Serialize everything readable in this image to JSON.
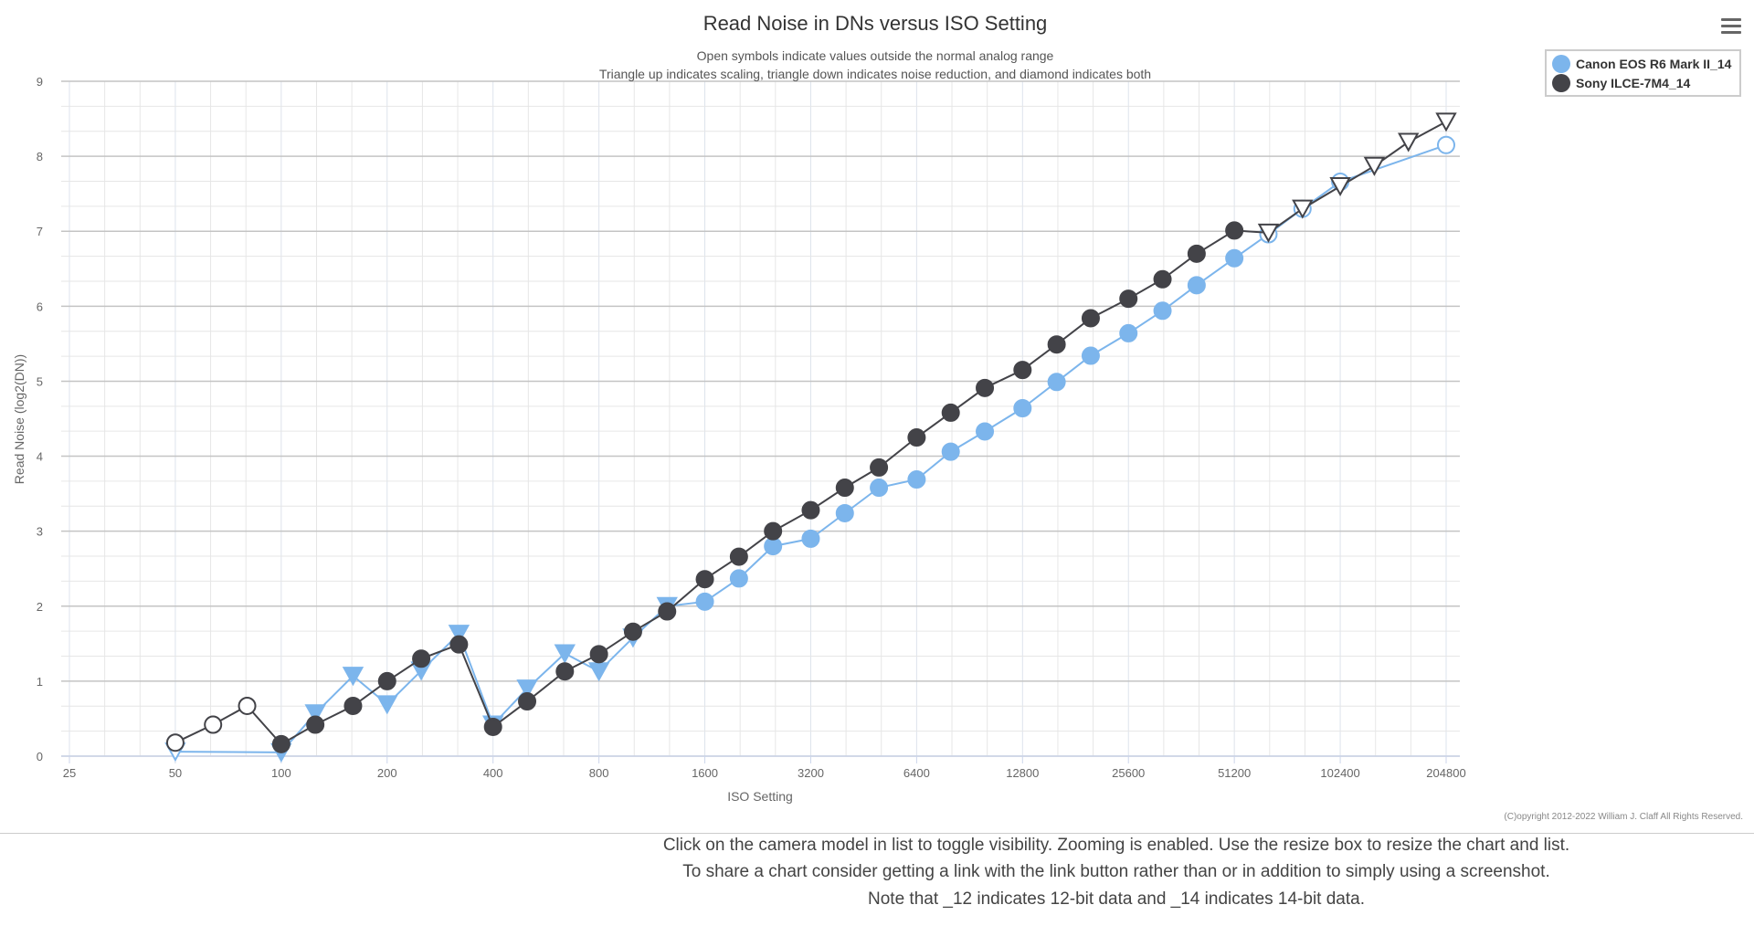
{
  "menu_icon": "hamburger-menu-icon",
  "chart_data": {
    "type": "line",
    "title": "Read Noise in DNs versus ISO Setting",
    "subtitle": [
      "Open symbols indicate values outside the normal analog range",
      "Triangle up indicates scaling, triangle down indicates noise reduction, and diamond indicates both"
    ],
    "xlabel": "ISO Setting",
    "ylabel": "Read Noise (log2(DN))",
    "x_scale": "log2",
    "xlim": [
      25,
      204800
    ],
    "ylim": [
      0,
      9
    ],
    "x_ticks": [
      "25",
      "50",
      "100",
      "200",
      "400",
      "800",
      "1600",
      "3200",
      "6400",
      "12800",
      "25600",
      "51200",
      "102400",
      "204800"
    ],
    "y_ticks": [
      "0",
      "1",
      "2",
      "3",
      "4",
      "5",
      "6",
      "7",
      "8",
      "9"
    ],
    "grid": true,
    "legend_position": "top-right",
    "copyright": "(C)opyright 2012-2022 William J. Claff All Rights Reserved.",
    "series": [
      {
        "name": "Canon EOS R6 Mark II_14",
        "color": "#7cb5ec",
        "points": [
          {
            "x": 50,
            "y": 0.06,
            "m": "tri-down-open"
          },
          {
            "x": 100,
            "y": 0.05,
            "m": "tri-down"
          },
          {
            "x": 125,
            "y": 0.57,
            "m": "tri-down"
          },
          {
            "x": 160,
            "y": 1.07,
            "m": "tri-down"
          },
          {
            "x": 200,
            "y": 0.69,
            "m": "tri-down"
          },
          {
            "x": 250,
            "y": 1.14,
            "m": "tri-down"
          },
          {
            "x": 320,
            "y": 1.63,
            "m": "tri-down"
          },
          {
            "x": 400,
            "y": 0.42,
            "m": "tri-down"
          },
          {
            "x": 500,
            "y": 0.9,
            "m": "tri-down"
          },
          {
            "x": 640,
            "y": 1.37,
            "m": "tri-down"
          },
          {
            "x": 800,
            "y": 1.13,
            "m": "tri-down"
          },
          {
            "x": 1000,
            "y": 1.58,
            "m": "tri-down"
          },
          {
            "x": 1250,
            "y": 2.0,
            "m": "tri-down"
          },
          {
            "x": 1600,
            "y": 2.06,
            "m": "circle"
          },
          {
            "x": 2000,
            "y": 2.37,
            "m": "circle"
          },
          {
            "x": 2500,
            "y": 2.8,
            "m": "circle"
          },
          {
            "x": 3200,
            "y": 2.9,
            "m": "circle"
          },
          {
            "x": 4000,
            "y": 3.24,
            "m": "circle"
          },
          {
            "x": 5000,
            "y": 3.58,
            "m": "circle"
          },
          {
            "x": 6400,
            "y": 3.69,
            "m": "circle"
          },
          {
            "x": 8000,
            "y": 4.06,
            "m": "circle"
          },
          {
            "x": 10000,
            "y": 4.33,
            "m": "circle"
          },
          {
            "x": 12800,
            "y": 4.64,
            "m": "circle"
          },
          {
            "x": 16000,
            "y": 4.99,
            "m": "circle"
          },
          {
            "x": 20000,
            "y": 5.34,
            "m": "circle"
          },
          {
            "x": 25600,
            "y": 5.64,
            "m": "circle"
          },
          {
            "x": 32000,
            "y": 5.94,
            "m": "circle"
          },
          {
            "x": 40000,
            "y": 6.28,
            "m": "circle"
          },
          {
            "x": 51200,
            "y": 6.64,
            "m": "circle"
          },
          {
            "x": 64000,
            "y": 6.96,
            "m": "circle-open"
          },
          {
            "x": 80000,
            "y": 7.3,
            "m": "circle-open"
          },
          {
            "x": 102400,
            "y": 7.66,
            "m": "circle-open"
          },
          {
            "x": 204800,
            "y": 8.15,
            "m": "circle-open"
          }
        ]
      },
      {
        "name": "Sony ILCE-7M4_14",
        "color": "#434348",
        "points": [
          {
            "x": 50,
            "y": 0.18,
            "m": "circle-open"
          },
          {
            "x": 64,
            "y": 0.42,
            "m": "circle-open"
          },
          {
            "x": 80,
            "y": 0.67,
            "m": "circle-open"
          },
          {
            "x": 100,
            "y": 0.16,
            "m": "circle"
          },
          {
            "x": 125,
            "y": 0.42,
            "m": "circle"
          },
          {
            "x": 160,
            "y": 0.67,
            "m": "circle"
          },
          {
            "x": 200,
            "y": 1.0,
            "m": "circle"
          },
          {
            "x": 250,
            "y": 1.3,
            "m": "circle"
          },
          {
            "x": 320,
            "y": 1.49,
            "m": "circle"
          },
          {
            "x": 400,
            "y": 0.39,
            "m": "circle"
          },
          {
            "x": 500,
            "y": 0.73,
            "m": "circle"
          },
          {
            "x": 640,
            "y": 1.13,
            "m": "circle"
          },
          {
            "x": 800,
            "y": 1.36,
            "m": "circle"
          },
          {
            "x": 1000,
            "y": 1.66,
            "m": "circle"
          },
          {
            "x": 1250,
            "y": 1.93,
            "m": "circle"
          },
          {
            "x": 1600,
            "y": 2.36,
            "m": "circle"
          },
          {
            "x": 2000,
            "y": 2.66,
            "m": "circle"
          },
          {
            "x": 2500,
            "y": 3.0,
            "m": "circle"
          },
          {
            "x": 3200,
            "y": 3.28,
            "m": "circle"
          },
          {
            "x": 4000,
            "y": 3.58,
            "m": "circle"
          },
          {
            "x": 5000,
            "y": 3.85,
            "m": "circle"
          },
          {
            "x": 6400,
            "y": 4.25,
            "m": "circle"
          },
          {
            "x": 8000,
            "y": 4.58,
            "m": "circle"
          },
          {
            "x": 10000,
            "y": 4.91,
            "m": "circle"
          },
          {
            "x": 12800,
            "y": 5.15,
            "m": "circle"
          },
          {
            "x": 16000,
            "y": 5.49,
            "m": "circle"
          },
          {
            "x": 20000,
            "y": 5.84,
            "m": "circle"
          },
          {
            "x": 25600,
            "y": 6.1,
            "m": "circle"
          },
          {
            "x": 32000,
            "y": 6.36,
            "m": "circle"
          },
          {
            "x": 40000,
            "y": 6.7,
            "m": "circle"
          },
          {
            "x": 51200,
            "y": 7.01,
            "m": "circle"
          },
          {
            "x": 64000,
            "y": 6.98,
            "m": "tri-down-open"
          },
          {
            "x": 80000,
            "y": 7.3,
            "m": "tri-down-open"
          },
          {
            "x": 102400,
            "y": 7.6,
            "m": "tri-down-open"
          },
          {
            "x": 128000,
            "y": 7.87,
            "m": "tri-down-open"
          },
          {
            "x": 160000,
            "y": 8.19,
            "m": "tri-down-open"
          },
          {
            "x": 204800,
            "y": 8.46,
            "m": "tri-down-open"
          }
        ]
      }
    ]
  },
  "footer": {
    "lines": [
      "Click on the camera model in list to toggle visibility. Zooming is enabled. Use the resize box to resize the chart and list.",
      "To share a chart consider getting a link with the link button rather than or in addition to simply using a screenshot.",
      "Note that _12 indicates 12-bit data and _14 indicates 14-bit data."
    ]
  }
}
